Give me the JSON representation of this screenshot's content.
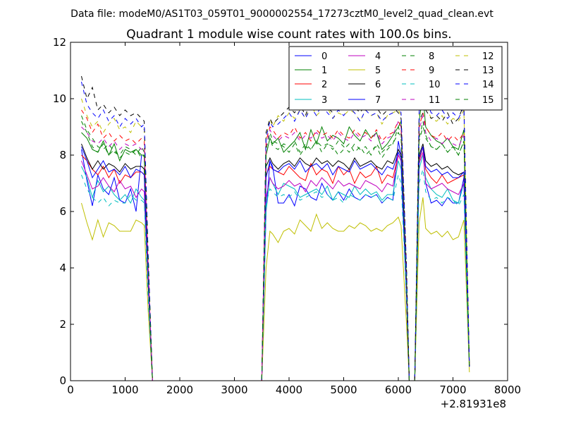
{
  "figure": {
    "suptitle": "Data file: modeM0/AS1T03_059T01_9000002554_17273cztM0_level2_quad_clean.evt"
  },
  "chart_data": {
    "type": "line",
    "title": "Quadrant 1 module wise count rates with 100.0s bins.",
    "xlabel": "",
    "ylabel": "",
    "xlim": [
      0,
      8000
    ],
    "ylim": [
      0,
      12
    ],
    "x_ticks": [
      "0",
      "1000",
      "2000",
      "3000",
      "4000",
      "5000",
      "6000",
      "7000",
      "8000"
    ],
    "y_ticks": [
      "0",
      "2",
      "4",
      "6",
      "8",
      "10",
      "12"
    ],
    "x_offset_label": "+2.81931e8",
    "grid": false,
    "legend": {
      "position": "top-right",
      "columns": 4
    },
    "x": [
      200,
      300,
      400,
      500,
      600,
      700,
      800,
      900,
      1000,
      1100,
      1200,
      1300,
      1350,
      1420,
      1500,
      1600,
      2000,
      2500,
      3000,
      3500,
      3580,
      3650,
      3700,
      3800,
      3900,
      4000,
      4100,
      4200,
      4300,
      4400,
      4500,
      4600,
      4700,
      4800,
      4900,
      5000,
      5100,
      5200,
      5300,
      5400,
      5500,
      5600,
      5700,
      5800,
      5900,
      6000,
      6050,
      6150,
      6200,
      6300,
      6380,
      6450,
      6500,
      6600,
      6700,
      6800,
      6900,
      7000,
      7100,
      7200,
      7300
    ],
    "series": [
      {
        "name": "0",
        "color": "#0000ff",
        "style": "solid",
        "values": [
          8.2,
          7.1,
          6.2,
          7.3,
          6.8,
          6.6,
          7.2,
          6.4,
          6.3,
          6.8,
          6.0,
          8.0,
          8.0,
          4.0,
          0,
          0,
          0,
          0,
          0,
          0,
          6.0,
          7.8,
          7.6,
          6.3,
          6.3,
          6.6,
          6.2,
          6.9,
          6.8,
          6.5,
          6.4,
          7.0,
          6.6,
          6.4,
          6.7,
          6.4,
          6.8,
          6.5,
          6.4,
          6.6,
          6.5,
          6.6,
          6.3,
          6.5,
          6.4,
          8.5,
          8.0,
          3.0,
          0,
          0,
          7.8,
          8.3,
          7.0,
          6.3,
          6.4,
          6.2,
          6.5,
          6.3,
          6.3,
          7.2,
          0.5
        ]
      },
      {
        "name": "1",
        "color": "#008000",
        "style": "solid",
        "values": [
          8.8,
          8.6,
          8.2,
          8.1,
          8.5,
          8.0,
          8.4,
          7.8,
          8.2,
          8.1,
          8.2,
          8.0,
          8.0,
          3.5,
          0,
          0,
          0,
          0,
          0,
          0,
          8.0,
          8.6,
          8.4,
          8.6,
          8.1,
          8.3,
          8.5,
          8.8,
          8.2,
          8.9,
          8.4,
          9.0,
          8.5,
          8.7,
          8.6,
          8.4,
          9.0,
          8.7,
          8.5,
          8.9,
          8.6,
          8.8,
          8.2,
          8.4,
          8.7,
          9.0,
          9.2,
          3.0,
          0,
          0,
          9.2,
          10.2,
          9.0,
          8.7,
          8.5,
          8.4,
          8.6,
          8.3,
          8.2,
          8.9,
          0.5
        ]
      },
      {
        "name": "2",
        "color": "#ff0000",
        "style": "solid",
        "values": [
          8.0,
          7.8,
          7.5,
          7.3,
          7.6,
          7.2,
          7.5,
          7.0,
          7.3,
          7.2,
          7.4,
          7.4,
          7.3,
          3.5,
          0,
          0,
          0,
          0,
          0,
          0,
          7.3,
          7.6,
          7.5,
          7.4,
          7.3,
          7.6,
          7.4,
          7.2,
          7.1,
          7.7,
          7.3,
          7.5,
          7.4,
          7.0,
          7.6,
          7.3,
          7.5,
          7.0,
          7.4,
          7.2,
          7.3,
          7.6,
          7.0,
          7.3,
          7.2,
          8.0,
          7.8,
          3.0,
          0,
          0,
          7.8,
          8.3,
          7.5,
          7.2,
          7.0,
          7.3,
          7.0,
          7.1,
          7.2,
          7.3,
          0.5
        ]
      },
      {
        "name": "3",
        "color": "#00bfbf",
        "style": "solid",
        "values": [
          7.6,
          7.2,
          6.5,
          7.1,
          6.7,
          6.9,
          6.6,
          6.4,
          6.6,
          6.3,
          6.8,
          6.5,
          6.4,
          3.5,
          0,
          0,
          0,
          0,
          0,
          0,
          6.0,
          7.2,
          7.0,
          6.6,
          7.0,
          6.9,
          6.8,
          6.5,
          6.6,
          6.7,
          6.8,
          6.6,
          6.9,
          6.4,
          6.7,
          6.6,
          6.5,
          6.9,
          6.6,
          6.8,
          6.6,
          6.7,
          6.4,
          6.6,
          6.6,
          7.8,
          7.5,
          3.0,
          0,
          0,
          7.5,
          8.0,
          7.2,
          6.8,
          6.6,
          6.5,
          6.8,
          6.4,
          6.3,
          7.0,
          0.5
        ]
      },
      {
        "name": "4",
        "color": "#bf00bf",
        "style": "solid",
        "values": [
          7.8,
          7.3,
          6.8,
          6.9,
          7.2,
          6.9,
          6.7,
          7.1,
          6.8,
          6.9,
          6.5,
          6.8,
          6.7,
          3.5,
          0,
          0,
          0,
          0,
          0,
          0,
          6.5,
          7.2,
          7.0,
          6.8,
          6.9,
          7.1,
          6.9,
          7.0,
          6.7,
          7.1,
          6.9,
          7.2,
          7.0,
          6.8,
          7.1,
          6.9,
          7.0,
          6.9,
          6.8,
          7.1,
          7.0,
          6.9,
          6.7,
          7.0,
          6.9,
          8.0,
          7.8,
          3.0,
          0,
          0,
          7.7,
          8.1,
          7.0,
          6.8,
          6.9,
          7.0,
          6.8,
          6.7,
          6.6,
          7.0,
          0.5
        ]
      },
      {
        "name": "5",
        "color": "#bfbf00",
        "style": "solid",
        "values": [
          6.3,
          5.6,
          5.0,
          5.7,
          5.1,
          5.6,
          5.5,
          5.3,
          5.3,
          5.3,
          5.7,
          5.6,
          5.5,
          2.5,
          0,
          0,
          0,
          0,
          0,
          0,
          4.0,
          5.3,
          5.2,
          4.9,
          5.3,
          5.4,
          5.2,
          5.7,
          5.5,
          5.3,
          5.9,
          5.4,
          5.6,
          5.4,
          5.3,
          5.3,
          5.5,
          5.4,
          5.6,
          5.5,
          5.3,
          5.4,
          5.3,
          5.5,
          5.6,
          5.8,
          5.5,
          2.0,
          0,
          0,
          5.6,
          6.5,
          5.4,
          5.2,
          5.3,
          5.1,
          5.3,
          5.0,
          5.1,
          5.7,
          0.3
        ]
      },
      {
        "name": "6",
        "color": "#000000",
        "style": "solid",
        "values": [
          8.4,
          7.9,
          7.5,
          7.8,
          7.5,
          7.7,
          7.6,
          7.4,
          7.7,
          7.5,
          7.6,
          7.6,
          7.5,
          3.5,
          0,
          0,
          0,
          0,
          0,
          0,
          7.6,
          7.9,
          7.7,
          7.5,
          7.7,
          7.8,
          7.6,
          7.9,
          7.7,
          7.6,
          7.9,
          7.7,
          7.8,
          7.6,
          7.8,
          7.7,
          7.5,
          7.9,
          7.6,
          7.7,
          7.8,
          7.6,
          7.5,
          7.8,
          7.7,
          8.2,
          8.0,
          3.0,
          0,
          0,
          8.0,
          8.4,
          7.8,
          7.6,
          7.7,
          7.5,
          7.6,
          7.4,
          7.3,
          7.4,
          0.5
        ]
      },
      {
        "name": "7",
        "color": "#0000ff",
        "style": "solid",
        "values": [
          8.3,
          7.8,
          7.2,
          7.5,
          7.8,
          7.4,
          7.5,
          7.3,
          7.6,
          7.2,
          7.5,
          7.4,
          7.3,
          3.5,
          0,
          0,
          0,
          0,
          0,
          0,
          7.2,
          7.8,
          7.5,
          7.4,
          7.6,
          7.7,
          7.5,
          7.8,
          7.4,
          7.6,
          7.7,
          7.5,
          7.7,
          7.3,
          7.6,
          7.5,
          7.4,
          7.8,
          7.5,
          7.6,
          7.7,
          7.5,
          7.3,
          7.6,
          7.5,
          8.1,
          7.9,
          3.0,
          0,
          0,
          7.9,
          8.3,
          7.6,
          7.4,
          7.5,
          7.3,
          7.4,
          7.2,
          7.2,
          7.4,
          0.5
        ]
      },
      {
        "name": "8",
        "color": "#008000",
        "style": "dashed",
        "values": [
          9.4,
          8.9,
          8.6,
          8.3,
          8.2,
          8.4,
          8.1,
          8.0,
          8.3,
          8.2,
          8.0,
          8.3,
          8.1,
          4.0,
          0,
          0,
          0,
          0,
          0,
          0,
          8.2,
          8.8,
          8.5,
          8.4,
          8.3,
          8.1,
          8.4,
          8.0,
          8.3,
          8.2,
          8.5,
          8.1,
          8.4,
          8.3,
          8.0,
          8.2,
          8.4,
          8.1,
          8.3,
          8.0,
          8.2,
          8.3,
          7.9,
          8.2,
          8.4,
          9.0,
          8.7,
          3.5,
          0,
          0,
          8.5,
          9.0,
          8.7,
          8.3,
          8.2,
          8.4,
          8.1,
          8.3,
          8.0,
          8.5,
          0.5
        ]
      },
      {
        "name": "9",
        "color": "#ff0000",
        "style": "dashed",
        "values": [
          9.6,
          9.3,
          8.8,
          9.1,
          8.6,
          8.8,
          8.5,
          8.7,
          8.5,
          8.6,
          8.4,
          8.6,
          8.5,
          4.0,
          0,
          0,
          0,
          0,
          0,
          0,
          8.5,
          9.0,
          8.9,
          8.6,
          8.8,
          8.7,
          9.0,
          8.6,
          8.8,
          8.5,
          8.9,
          8.7,
          8.8,
          8.6,
          8.9,
          8.7,
          8.6,
          8.9,
          8.7,
          8.8,
          8.6,
          8.9,
          8.5,
          8.7,
          8.8,
          9.2,
          9.0,
          3.5,
          0,
          0,
          9.0,
          9.5,
          9.0,
          8.7,
          8.6,
          8.8,
          8.5,
          8.7,
          8.5,
          8.8,
          0.5
        ]
      },
      {
        "name": "10",
        "color": "#00bfbf",
        "style": "dashed",
        "values": [
          7.3,
          6.8,
          6.5,
          6.3,
          6.5,
          6.2,
          6.4,
          6.3,
          6.3,
          6.6,
          6.4,
          6.4,
          6.3,
          3.0,
          0,
          0,
          0,
          0,
          0,
          0,
          6.3,
          6.8,
          6.7,
          6.5,
          6.6,
          6.5,
          6.7,
          6.4,
          6.5,
          6.6,
          6.7,
          6.5,
          6.6,
          6.4,
          6.5,
          6.3,
          6.6,
          6.5,
          6.4,
          6.6,
          6.5,
          6.6,
          6.3,
          6.5,
          6.4,
          7.3,
          7.0,
          3.0,
          0,
          0,
          7.0,
          7.5,
          6.7,
          6.4,
          6.5,
          6.3,
          6.5,
          6.4,
          6.2,
          6.6,
          0.4
        ]
      },
      {
        "name": "11",
        "color": "#bf00bf",
        "style": "dashed",
        "values": [
          9.0,
          8.8,
          8.5,
          8.4,
          8.6,
          8.3,
          8.5,
          8.2,
          8.4,
          8.3,
          8.4,
          8.2,
          8.3,
          4.0,
          0,
          0,
          0,
          0,
          0,
          0,
          8.3,
          8.9,
          8.7,
          8.5,
          8.7,
          8.6,
          8.8,
          8.5,
          8.7,
          8.6,
          8.8,
          8.6,
          8.7,
          8.5,
          8.8,
          8.6,
          8.5,
          8.8,
          8.6,
          8.7,
          8.5,
          8.8,
          8.4,
          8.6,
          8.7,
          9.2,
          9.0,
          3.5,
          0,
          0,
          8.9,
          9.4,
          8.8,
          8.5,
          8.6,
          8.4,
          8.6,
          8.4,
          8.3,
          8.7,
          0.5
        ]
      },
      {
        "name": "12",
        "color": "#bfbf00",
        "style": "dashed",
        "values": [
          10.0,
          9.4,
          9.0,
          9.2,
          8.8,
          9.1,
          9.3,
          8.9,
          9.0,
          8.8,
          9.2,
          9.0,
          8.9,
          4.5,
          0,
          0,
          0,
          0,
          0,
          0,
          8.6,
          9.3,
          9.0,
          9.4,
          9.2,
          9.5,
          9.3,
          9.6,
          9.3,
          9.8,
          9.4,
          9.6,
          9.7,
          9.3,
          9.5,
          9.4,
          9.6,
          9.5,
          9.2,
          9.6,
          9.4,
          9.5,
          9.1,
          9.4,
          9.5,
          9.6,
          9.4,
          4.0,
          0,
          0,
          9.6,
          10.6,
          9.8,
          9.3,
          9.2,
          9.4,
          9.1,
          9.3,
          9.2,
          9.6,
          0.5
        ]
      },
      {
        "name": "13",
        "color": "#000000",
        "style": "dashed",
        "values": [
          10.8,
          10.0,
          10.4,
          9.6,
          9.8,
          9.5,
          9.7,
          9.4,
          9.6,
          9.4,
          9.5,
          9.3,
          9.2,
          4.5,
          0,
          0,
          0,
          0,
          0,
          0,
          8.8,
          9.3,
          9.1,
          9.3,
          9.5,
          9.7,
          9.5,
          9.8,
          9.4,
          10.0,
          9.6,
          9.9,
          9.7,
          9.5,
          9.8,
          9.6,
          9.9,
          9.7,
          9.5,
          9.8,
          9.6,
          9.7,
          9.4,
          9.6,
          9.7,
          9.5,
          9.3,
          4.0,
          0,
          0,
          9.2,
          9.5,
          9.6,
          9.3,
          9.4,
          9.2,
          9.5,
          9.1,
          9.3,
          9.8,
          0.5
        ]
      },
      {
        "name": "14",
        "color": "#0000ff",
        "style": "dashed",
        "values": [
          10.6,
          9.8,
          9.5,
          9.3,
          9.6,
          9.2,
          9.4,
          9.0,
          9.3,
          9.1,
          9.3,
          9.0,
          9.1,
          4.5,
          0,
          0,
          0,
          0,
          0,
          0,
          8.6,
          9.2,
          9.0,
          9.1,
          9.3,
          9.5,
          9.2,
          9.6,
          9.3,
          9.7,
          9.4,
          9.8,
          9.5,
          9.3,
          9.6,
          9.4,
          9.7,
          9.5,
          9.2,
          9.6,
          9.4,
          9.5,
          9.2,
          9.4,
          9.5,
          9.7,
          9.5,
          4.0,
          0,
          0,
          9.5,
          11.3,
          10.0,
          9.5,
          9.4,
          9.6,
          9.3,
          9.5,
          9.3,
          9.7,
          0.5
        ]
      },
      {
        "name": "15",
        "color": "#008000",
        "style": "dashed",
        "values": [
          9.2,
          8.8,
          8.3,
          8.1,
          8.4,
          8.0,
          8.2,
          7.9,
          8.1,
          8.0,
          8.2,
          7.9,
          8.0,
          4.0,
          0,
          0,
          0,
          0,
          0,
          0,
          8.0,
          8.6,
          8.3,
          8.2,
          8.4,
          8.3,
          8.5,
          8.1,
          8.4,
          8.2,
          8.5,
          8.3,
          8.4,
          8.2,
          8.5,
          8.3,
          8.1,
          8.4,
          8.2,
          8.3,
          8.0,
          8.4,
          8.1,
          8.3,
          8.4,
          8.8,
          8.6,
          3.5,
          0,
          0,
          8.6,
          9.2,
          8.6,
          8.3,
          8.2,
          8.4,
          8.1,
          8.3,
          8.0,
          8.5,
          0.5
        ]
      }
    ]
  }
}
